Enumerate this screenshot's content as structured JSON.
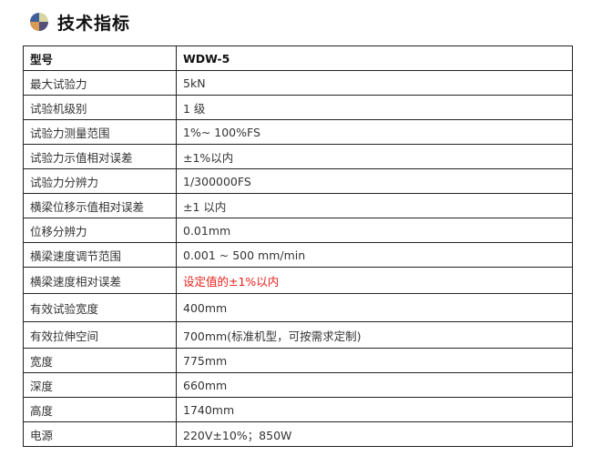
{
  "title": "技术指标",
  "accent_color": "#e8211b",
  "header": {
    "label": "型号",
    "value": "WDW-5"
  },
  "rows": [
    {
      "label": "最大试验力",
      "value": "5kN"
    },
    {
      "label": "试验机级别",
      "value": "1 级"
    },
    {
      "label": "试验力测量范围",
      "value": "1%~ 100%FS"
    },
    {
      "label": "试验力示值相对误差",
      "value": "±1%以内"
    },
    {
      "label": "试验力分辨力",
      "value": "1/300000FS"
    },
    {
      "label": "横梁位移示值相对误差",
      "value": "±1 以内"
    },
    {
      "label": "位移分辨力",
      "value": "0.01mm"
    },
    {
      "label": "横梁速度调节范围",
      "value": "0.001 ~ 500 mm/min"
    },
    {
      "label": "横梁速度相对误差",
      "value": "设定值的±1%以内"
    },
    {
      "label": "有效试验宽度",
      "value": "400mm"
    },
    {
      "label": "有效拉伸空间",
      "value": "700mm(标准机型，可按需求定制)"
    },
    {
      "label": "宽度",
      "value": "775mm"
    },
    {
      "label": "深度",
      "value": "660mm"
    },
    {
      "label": "高度",
      "value": "1740mm"
    },
    {
      "label": "电源",
      "value": "220V±10%；850W"
    }
  ]
}
